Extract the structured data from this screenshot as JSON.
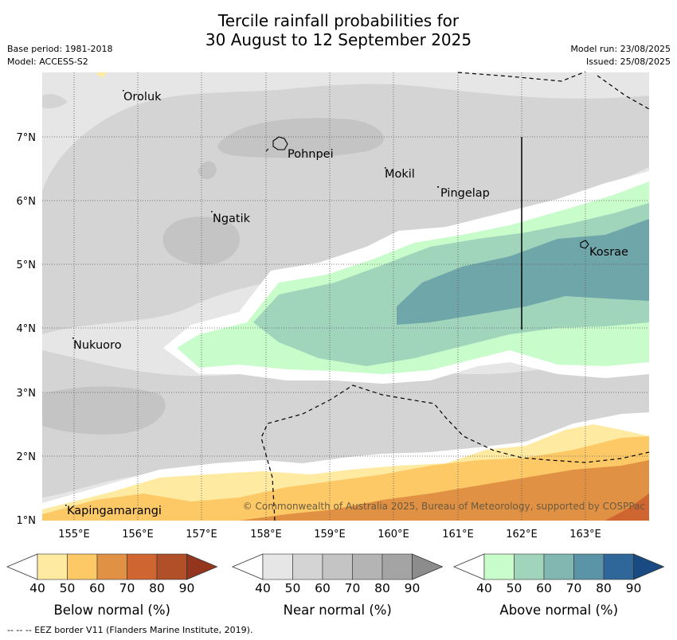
{
  "title": {
    "line1": "Tercile rainfall probabilities for",
    "line2": "30 August to 12 September 2025"
  },
  "meta": {
    "base_period": "Base period: 1981-2018",
    "model": "Model: ACCESS-S2",
    "model_run": "Model run: 23/08/2025",
    "issued": "Issued: 25/08/2025"
  },
  "map": {
    "copyright": "© Commonwealth of Australia 2025, Bureau of Meteorology, supported by COSPPac",
    "x_ticks": [
      "155°E",
      "156°E",
      "157°E",
      "158°E",
      "159°E",
      "160°E",
      "161°E",
      "162°E",
      "163°E"
    ],
    "y_ticks": [
      "7°N",
      "6°N",
      "5°N",
      "4°N",
      "3°N",
      "2°N",
      "1°N"
    ],
    "places": [
      {
        "name": "Oroluk"
      },
      {
        "name": "Pohnpei"
      },
      {
        "name": "Mokil"
      },
      {
        "name": "Pingelap"
      },
      {
        "name": "Ngatik"
      },
      {
        "name": "Kosrae"
      },
      {
        "name": "Nukuoro"
      },
      {
        "name": "Kapingamarangi"
      }
    ]
  },
  "colorbars": [
    {
      "label": "Below normal (%)",
      "ticks": [
        "40",
        "50",
        "60",
        "70",
        "80",
        "90"
      ],
      "colors": [
        "#ffffff",
        "#feeba1",
        "#fdc967",
        "#e09143",
        "#cf6530",
        "#b04f28",
        "#94361e"
      ]
    },
    {
      "label": "Near normal (%)",
      "ticks": [
        "40",
        "50",
        "60",
        "70",
        "80",
        "90"
      ],
      "colors": [
        "#ffffff",
        "#e6e6e6",
        "#d4d4d4",
        "#c4c4c4",
        "#b4b4b4",
        "#a4a4a4",
        "#8c8c8c"
      ]
    },
    {
      "label": "Above normal (%)",
      "ticks": [
        "40",
        "50",
        "60",
        "70",
        "80",
        "90"
      ],
      "colors": [
        "#ffffff",
        "#c9fccb",
        "#a0d5bb",
        "#81b7b0",
        "#5b94a6",
        "#30679a",
        "#1a4a82"
      ]
    }
  ],
  "footer": "--  --  -- EEZ border V11 (Flanders Marine Institute, 2019)."
}
